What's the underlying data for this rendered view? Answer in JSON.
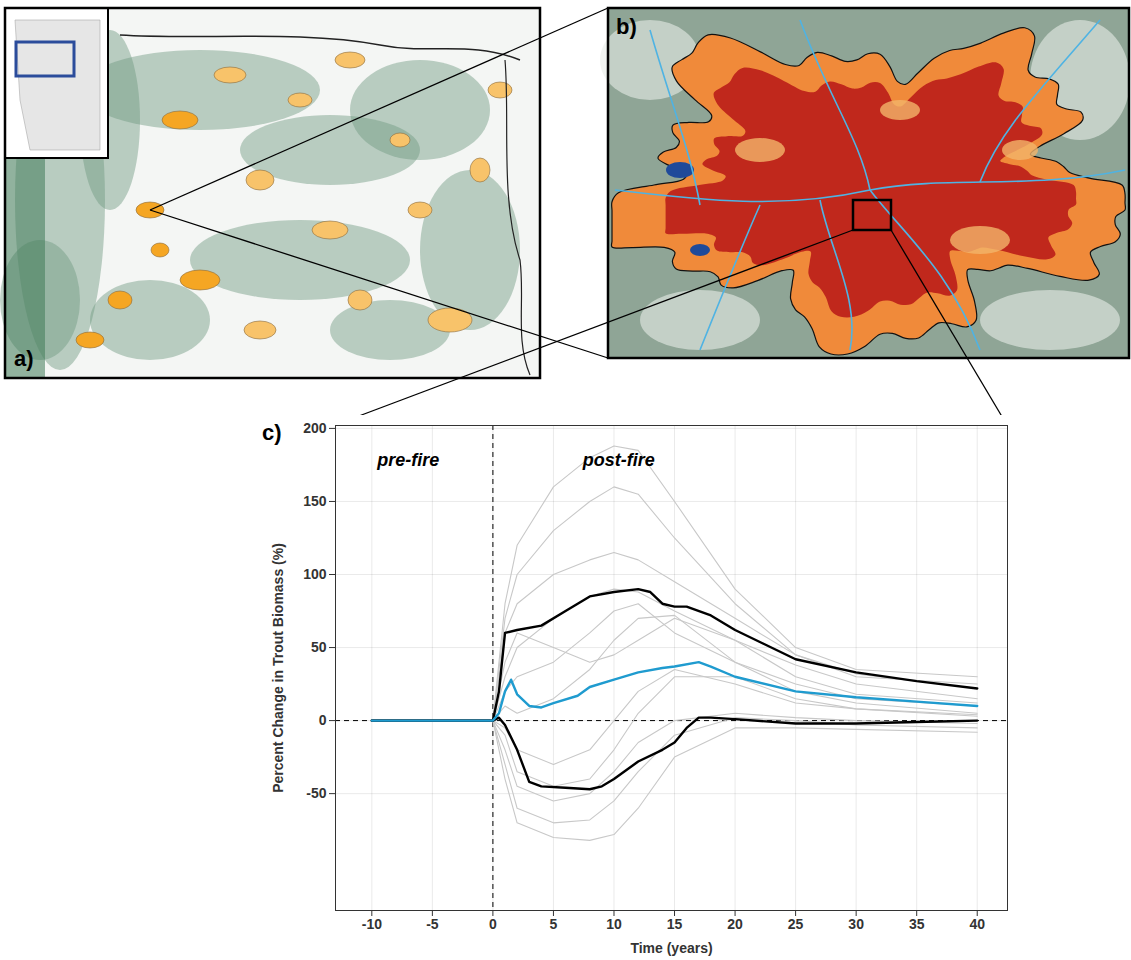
{
  "chart_data": {
    "type": "line",
    "x_label": "Time (years)",
    "y_label": "Percent Change in Trout Biomass (%)",
    "xlim": [
      -13,
      42.5
    ],
    "ylim": [
      -130,
      202
    ],
    "xticks": [
      -10,
      -5,
      0,
      5,
      10,
      15,
      20,
      25,
      30,
      35,
      40
    ],
    "yticks": [
      -50,
      0,
      50,
      100,
      150,
      200
    ],
    "grid": true,
    "annotations": [
      {
        "text": "pre-fire",
        "x": -7,
        "y": 178
      },
      {
        "text": "post-fire",
        "x": 10.4,
        "y": 178
      }
    ],
    "reference_lines": [
      {
        "axis": "x",
        "value": 0,
        "line_style": "dashed"
      },
      {
        "axis": "y",
        "value": 0,
        "line_style": "dashed"
      }
    ],
    "series": [
      {
        "color": "#c8c8c8",
        "x": [
          -10,
          0,
          1,
          2,
          5,
          8,
          10,
          12,
          15,
          20,
          25,
          30,
          40
        ],
        "values": [
          0,
          0,
          80,
          120,
          160,
          180,
          188,
          185,
          150,
          90,
          50,
          35,
          30
        ]
      },
      {
        "color": "#c8c8c8",
        "x": [
          -10,
          0,
          1,
          2,
          5,
          8,
          10,
          12,
          15,
          20,
          25,
          30,
          40
        ],
        "values": [
          0,
          0,
          70,
          100,
          130,
          150,
          160,
          155,
          125,
          80,
          45,
          30,
          25
        ]
      },
      {
        "color": "#c8c8c8",
        "x": [
          -10,
          0,
          1,
          2,
          5,
          8,
          10,
          12,
          15,
          20,
          25,
          30,
          40
        ],
        "values": [
          0,
          0,
          60,
          80,
          100,
          110,
          115,
          110,
          95,
          70,
          45,
          32,
          22
        ]
      },
      {
        "color": "#c8c8c8",
        "x": [
          -10,
          0,
          1,
          2,
          5,
          8,
          10,
          12,
          15,
          20,
          25,
          30,
          40
        ],
        "values": [
          0,
          0,
          30,
          50,
          70,
          85,
          90,
          88,
          75,
          55,
          38,
          25,
          15
        ]
      },
      {
        "color": "#c8c8c8",
        "x": [
          -10,
          0,
          1,
          2,
          5,
          8,
          10,
          12,
          15,
          20,
          25,
          30,
          40
        ],
        "values": [
          0,
          0,
          20,
          30,
          40,
          60,
          75,
          80,
          60,
          40,
          25,
          15,
          10
        ]
      },
      {
        "color": "#c8c8c8",
        "x": [
          -10,
          0,
          1,
          2,
          5,
          8,
          10,
          12,
          15,
          20,
          25,
          30,
          40
        ],
        "values": [
          0,
          0,
          10,
          5,
          15,
          35,
          55,
          70,
          72,
          40,
          20,
          12,
          5
        ]
      },
      {
        "color": "#c8c8c8",
        "x": [
          -10,
          0,
          1,
          2,
          5,
          8,
          10,
          12,
          15,
          20,
          25,
          30,
          40
        ],
        "values": [
          0,
          0,
          40,
          60,
          50,
          40,
          45,
          55,
          70,
          55,
          30,
          18,
          12
        ]
      },
      {
        "color": "#c8c8c8",
        "x": [
          -10,
          0,
          1,
          2,
          5,
          8,
          10,
          12,
          15,
          20,
          25,
          30,
          40
        ],
        "values": [
          0,
          0,
          -5,
          -20,
          -30,
          -20,
          0,
          20,
          35,
          25,
          12,
          8,
          3
        ]
      },
      {
        "color": "#c8c8c8",
        "x": [
          -10,
          0,
          1,
          2,
          5,
          8,
          10,
          12,
          15,
          20,
          25,
          30,
          40
        ],
        "values": [
          0,
          0,
          -10,
          -35,
          -45,
          -40,
          -20,
          5,
          30,
          30,
          15,
          8,
          4
        ]
      },
      {
        "color": "#c8c8c8",
        "x": [
          -10,
          0,
          1,
          2,
          5,
          8,
          10,
          12,
          15,
          20,
          25,
          30,
          40
        ],
        "values": [
          0,
          0,
          -20,
          -45,
          -55,
          -50,
          -35,
          -15,
          0,
          5,
          2,
          0,
          -2
        ]
      },
      {
        "color": "#c8c8c8",
        "x": [
          -10,
          0,
          1,
          2,
          5,
          8,
          10,
          12,
          15,
          20,
          25,
          30,
          40
        ],
        "values": [
          0,
          0,
          -30,
          -60,
          -70,
          -68,
          -55,
          -35,
          -10,
          2,
          0,
          -3,
          -5
        ]
      },
      {
        "color": "#c8c8c8",
        "x": [
          -10,
          0,
          1,
          2,
          5,
          8,
          10,
          12,
          15,
          20,
          25,
          30,
          40
        ],
        "values": [
          0,
          0,
          -40,
          -70,
          -80,
          -82,
          -78,
          -60,
          -25,
          -5,
          -5,
          -6,
          -8
        ]
      },
      {
        "color": "#000000",
        "x": [
          -10,
          0,
          0.5,
          1,
          2,
          4,
          6,
          8,
          10,
          12,
          13,
          14,
          15,
          16,
          18,
          20,
          25,
          30,
          35,
          40
        ],
        "values": [
          0,
          0,
          20,
          60,
          62,
          65,
          75,
          85,
          88,
          90,
          88,
          80,
          78,
          78,
          72,
          62,
          42,
          33,
          27,
          22
        ]
      },
      {
        "color": "#000000",
        "x": [
          -10,
          0,
          0.5,
          1,
          2,
          3,
          4,
          6,
          8,
          9,
          10,
          12,
          14,
          15,
          16,
          17,
          18,
          20,
          25,
          30,
          35,
          40
        ],
        "values": [
          0,
          0,
          2,
          -3,
          -20,
          -42,
          -45,
          -46,
          -47,
          -45,
          -40,
          -28,
          -20,
          -15,
          -5,
          2,
          2,
          1,
          -2,
          -2,
          -1,
          0
        ]
      },
      {
        "color": "#1f9bcf",
        "x": [
          -10,
          0,
          0.5,
          1,
          1.5,
          2,
          3,
          4,
          5,
          7,
          8,
          10,
          12,
          14,
          15,
          17,
          18,
          20,
          25,
          30,
          35,
          40
        ],
        "values": [
          0,
          0,
          5,
          20,
          28,
          18,
          10,
          9,
          12,
          17,
          23,
          28,
          33,
          36,
          37,
          40,
          37,
          30,
          20,
          16,
          13,
          10
        ]
      }
    ]
  },
  "panel_labels": {
    "overview_map": "a)",
    "detail_map": "b)",
    "chart": "c)"
  }
}
